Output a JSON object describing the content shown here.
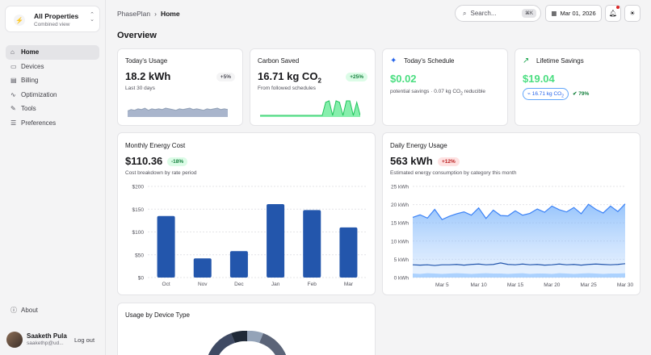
{
  "sidebar": {
    "property_title": "All Properties",
    "property_sub": "Combined view",
    "items": [
      {
        "label": "Home",
        "icon": "home-icon"
      },
      {
        "label": "Devices",
        "icon": "devices-icon"
      },
      {
        "label": "Billing",
        "icon": "billing-icon"
      },
      {
        "label": "Optimization",
        "icon": "optimization-icon"
      },
      {
        "label": "Tools",
        "icon": "tools-icon"
      },
      {
        "label": "Preferences",
        "icon": "preferences-icon"
      }
    ],
    "about": "About",
    "user": {
      "name": "Saaketh Pula",
      "email": "saakethp@ud...",
      "logout": "Log out"
    }
  },
  "header": {
    "app": "PhasePlan",
    "page": "Home",
    "search_placeholder": "Search...",
    "search_shortcut": "⌘K",
    "date": "Mar 01, 2026"
  },
  "page_title": "Overview",
  "cards": {
    "usage": {
      "title": "Today's Usage",
      "value": "18.2 kWh",
      "badge": "+5%",
      "sub": "Last 30 days"
    },
    "carbon": {
      "title": "Carbon Saved",
      "value": "16.71 kg CO",
      "value_sub": "2",
      "badge": "+25%",
      "sub": "From followed schedules"
    },
    "schedule": {
      "title": "Today's Schedule",
      "value": "$0.02",
      "sub_a": "potential savings · 0.07 kg CO",
      "sub_sub": "2",
      "sub_b": " reducible"
    },
    "lifetime": {
      "title": "Lifetime Savings",
      "value": "$19.04",
      "pill": "16.71 kg CO",
      "pill_sub": "2",
      "pct": "79%"
    },
    "monthly": {
      "title": "Monthly Energy Cost",
      "value": "$110.36",
      "badge": "-18%",
      "sub": "Cost breakdown by rate period"
    },
    "daily": {
      "title": "Daily Energy Usage",
      "value": "563 kWh",
      "badge": "+12%",
      "sub": "Estimated energy consumption by category this month"
    },
    "device": {
      "title": "Usage by Device Type"
    }
  },
  "colors": {
    "accent_blue": "#2356ac",
    "accent_green": "#4ade80",
    "area_blue": "#60a5fa"
  },
  "chart_data": [
    {
      "type": "bar",
      "title": "Monthly Energy Cost",
      "categories": [
        "Oct",
        "Nov",
        "Dec",
        "Jan",
        "Feb",
        "Mar"
      ],
      "values": [
        135,
        42,
        58,
        161,
        148,
        110
      ],
      "ylim": [
        0,
        200
      ],
      "yticks": [
        "$0",
        "$50",
        "$100",
        "$150",
        "$200"
      ],
      "grid": true
    },
    {
      "type": "area",
      "title": "Daily Energy Usage",
      "x": [
        1,
        2,
        3,
        4,
        5,
        6,
        7,
        8,
        9,
        10,
        11,
        12,
        13,
        14,
        15,
        16,
        17,
        18,
        19,
        20,
        21,
        22,
        23,
        24,
        25,
        26,
        27,
        28,
        29,
        30
      ],
      "xticks": [
        "Mar 5",
        "Mar 10",
        "Mar 15",
        "Mar 20",
        "Mar 25",
        "Mar 30"
      ],
      "yticks": [
        "0 kWh",
        "5 kWh",
        "10 kWh",
        "15 kWh",
        "20 kWh",
        "25 kWh"
      ],
      "ylim": [
        0,
        25
      ],
      "series": [
        {
          "values": [
            16.5,
            17.2,
            16.3,
            18.7,
            15.9,
            16.8,
            17.5,
            18.0,
            17.1,
            19.1,
            16.2,
            18.5,
            17.0,
            16.9,
            18.3,
            17.1,
            17.6,
            18.8,
            17.9,
            19.6,
            18.6,
            18.0,
            19.2,
            17.5,
            20.1,
            18.7,
            17.7,
            19.6,
            18.1,
            20.2
          ]
        },
        {
          "values": [
            3.5,
            3.4,
            3.5,
            3.3,
            3.5,
            3.5,
            3.6,
            3.4,
            3.6,
            3.7,
            3.5,
            3.6,
            4.0,
            3.6,
            3.5,
            3.7,
            3.5,
            3.6,
            3.4,
            3.5,
            3.7,
            3.5,
            3.6,
            3.4,
            3.6,
            3.7,
            3.6,
            3.5,
            3.6,
            3.8
          ]
        },
        {
          "values": [
            1.1,
            1.0,
            1.2,
            1.1,
            1.0,
            1.1,
            1.2,
            1.1,
            1.0,
            1.1,
            1.2,
            1.1,
            1.1,
            1.0,
            1.1,
            1.2,
            1.0,
            1.1,
            1.1,
            1.0,
            1.2,
            1.1,
            1.0,
            1.1,
            1.2,
            1.1,
            1.0,
            1.1,
            1.1,
            1.2
          ]
        }
      ],
      "grid": true
    },
    {
      "type": "area",
      "title": "Today's Usage",
      "values": [
        6,
        8,
        7,
        9,
        8,
        10,
        7,
        9,
        8,
        9,
        8,
        10,
        9,
        8,
        7,
        9,
        8,
        9,
        10,
        8,
        9,
        8,
        7,
        9,
        8,
        9,
        10,
        8,
        9,
        8
      ]
    },
    {
      "type": "area",
      "title": "Carbon Saved",
      "values": [
        0,
        0,
        0,
        0,
        0,
        0,
        0,
        0,
        0,
        0,
        0,
        0,
        0,
        0,
        0,
        0,
        0,
        0,
        0,
        9,
        10,
        0,
        10,
        9,
        0,
        10,
        10,
        0,
        9,
        0
      ]
    }
  ]
}
